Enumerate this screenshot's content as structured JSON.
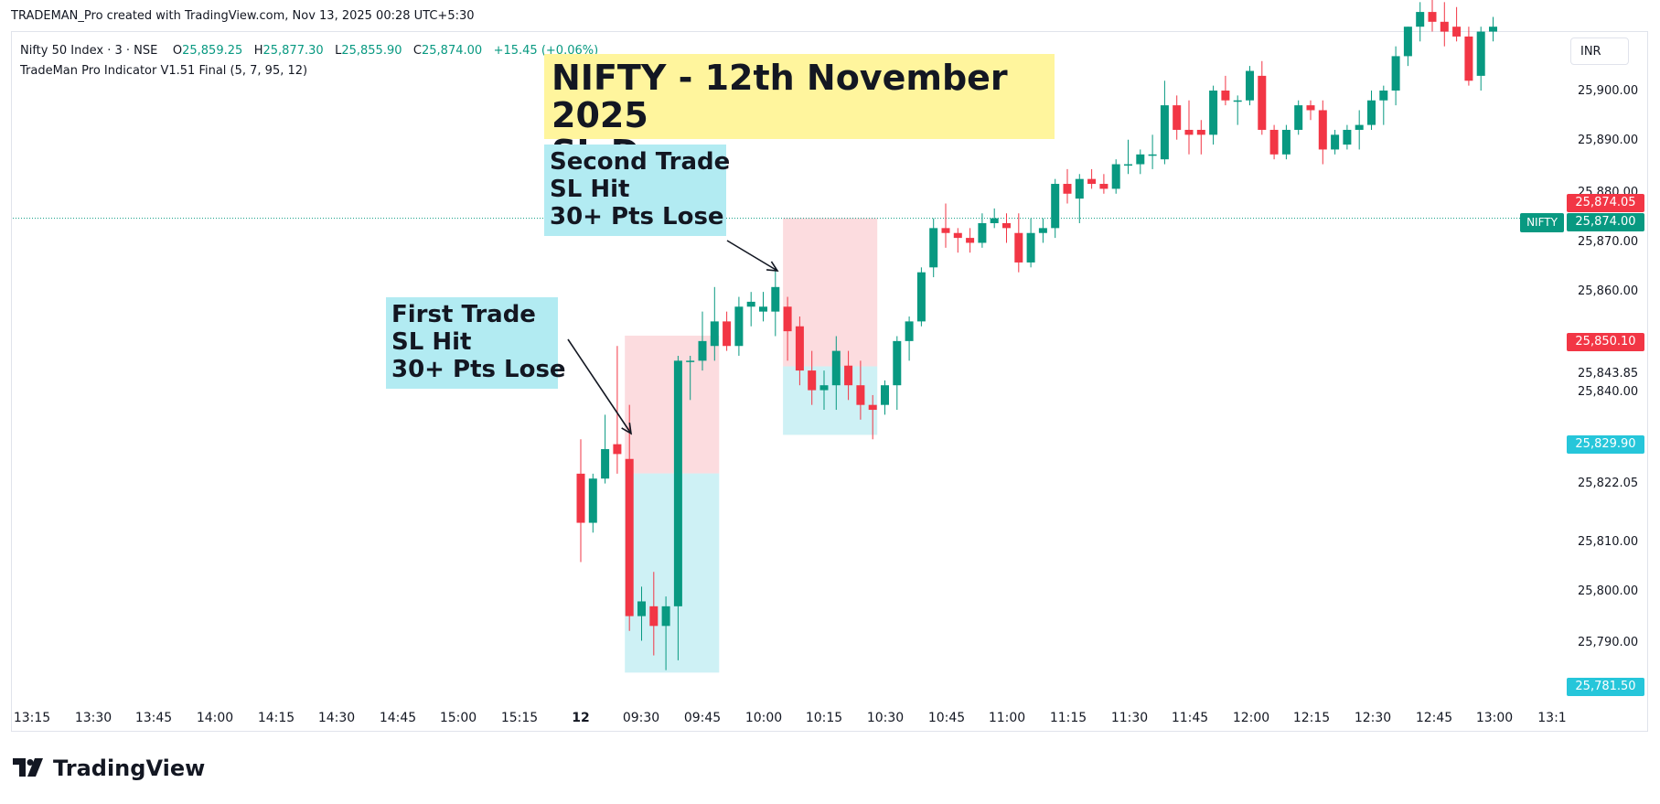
{
  "watermark": "TRADEMAN_Pro created with TradingView.com, Nov 13, 2025 00:28 UTC+5:30",
  "legend": {
    "symbol": "Nifty 50 Index · 3 · NSE",
    "open_label": "O",
    "open": "25,859.25",
    "high_label": "H",
    "high": "25,877.30",
    "low_label": "L",
    "low": "25,855.90",
    "close_label": "C",
    "close": "25,874.00",
    "change": "+15.45 (+0.06%)",
    "indicator": "TradeMan Pro Indicator V1.51 Final (5, 7, 95, 12)"
  },
  "currency_button": "INR",
  "symbol_tag": "NIFTY",
  "price_ticks": [
    "25,900.00",
    "25,890.00",
    "25,880.00",
    "25,870.00",
    "25,860.00",
    "25,843.85",
    "25,840.00",
    "25,822.05",
    "25,810.00",
    "25,800.00",
    "25,790.00"
  ],
  "price_badges": [
    {
      "label": "25,874.05",
      "color": "#f23645"
    },
    {
      "label": "25,874.00",
      "color": "#089981"
    },
    {
      "label": "25,850.10",
      "color": "#f23645"
    },
    {
      "label": "25,829.90",
      "color": "#26c6da"
    },
    {
      "label": "25,781.50",
      "color": "#26c6da"
    }
  ],
  "time_labels": [
    "13:15",
    "13:30",
    "13:45",
    "14:00",
    "14:15",
    "14:30",
    "14:45",
    "15:00",
    "15:15",
    "12",
    "09:30",
    "09:45",
    "10:00",
    "10:15",
    "10:30",
    "10:45",
    "11:00",
    "11:15",
    "11:30",
    "11:45",
    "12:00",
    "12:15",
    "12:30",
    "12:45",
    "13:00",
    "13:1"
  ],
  "title_box": {
    "line1": "NIFTY - 12th November 2025",
    "line2": "SL Day"
  },
  "note_first": {
    "line1": "First Trade",
    "line2": "SL Hit",
    "line3": "30+ Pts Lose"
  },
  "note_second": {
    "line1": "Second Trade",
    "line2": "SL Hit",
    "line3": "30+ Pts Lose"
  },
  "logo_text": "TradingView",
  "colors": {
    "up": "#089981",
    "down": "#f23645",
    "stop_zone": "#fcd6d9",
    "target_zone": "#c6eef3",
    "title_bg": "#fff59d",
    "note_bg": "#b2ebf2"
  },
  "chart_data": {
    "type": "candlestick",
    "symbol": "Nifty 50 Index",
    "interval": "3",
    "ylim": [
      25778,
      25911
    ],
    "last_price": 25874.0,
    "candles": [
      {
        "t": "09:15",
        "o": 25822,
        "h": 25829,
        "l": 25804,
        "c": 25812
      },
      {
        "t": "09:18",
        "o": 25812,
        "h": 25822,
        "l": 25810,
        "c": 25821
      },
      {
        "t": "09:21",
        "o": 25821,
        "h": 25834,
        "l": 25820,
        "c": 25827
      },
      {
        "t": "09:24",
        "o": 25828,
        "h": 25848,
        "l": 25822,
        "c": 25826
      },
      {
        "t": "09:27",
        "o": 25825,
        "h": 25836,
        "l": 25790,
        "c": 25793
      },
      {
        "t": "09:30",
        "o": 25793,
        "h": 25799,
        "l": 25788,
        "c": 25796
      },
      {
        "t": "09:33",
        "o": 25795,
        "h": 25802,
        "l": 25785,
        "c": 25791
      },
      {
        "t": "09:36",
        "o": 25791,
        "h": 25797,
        "l": 25782,
        "c": 25795
      },
      {
        "t": "09:39",
        "o": 25795,
        "h": 25846,
        "l": 25784,
        "c": 25845
      },
      {
        "t": "09:42",
        "o": 25845,
        "h": 25846,
        "l": 25837,
        "c": 25845
      },
      {
        "t": "09:45",
        "o": 25845,
        "h": 25855,
        "l": 25843,
        "c": 25849
      },
      {
        "t": "09:48",
        "o": 25848,
        "h": 25860,
        "l": 25845,
        "c": 25853
      },
      {
        "t": "09:51",
        "o": 25853,
        "h": 25855,
        "l": 25847,
        "c": 25848
      },
      {
        "t": "09:54",
        "o": 25848,
        "h": 25858,
        "l": 25846,
        "c": 25856
      },
      {
        "t": "09:57",
        "o": 25856,
        "h": 25859,
        "l": 25852,
        "c": 25857
      },
      {
        "t": "10:00",
        "o": 25855,
        "h": 25859,
        "l": 25853,
        "c": 25856
      },
      {
        "t": "10:03",
        "o": 25855,
        "h": 25864,
        "l": 25850,
        "c": 25860
      },
      {
        "t": "10:06",
        "o": 25856,
        "h": 25858,
        "l": 25845,
        "c": 25851
      },
      {
        "t": "10:09",
        "o": 25852,
        "h": 25854,
        "l": 25840,
        "c": 25843
      },
      {
        "t": "10:12",
        "o": 25843,
        "h": 25847,
        "l": 25836,
        "c": 25839
      },
      {
        "t": "10:15",
        "o": 25839,
        "h": 25843,
        "l": 25835,
        "c": 25840
      },
      {
        "t": "10:18",
        "o": 25840,
        "h": 25850,
        "l": 25835,
        "c": 25847
      },
      {
        "t": "10:21",
        "o": 25844,
        "h": 25847,
        "l": 25837,
        "c": 25840
      },
      {
        "t": "10:24",
        "o": 25840,
        "h": 25845,
        "l": 25833,
        "c": 25836
      },
      {
        "t": "10:27",
        "o": 25836,
        "h": 25838,
        "l": 25829,
        "c": 25835
      },
      {
        "t": "10:30",
        "o": 25836,
        "h": 25841,
        "l": 25834,
        "c": 25840
      },
      {
        "t": "10:33",
        "o": 25840,
        "h": 25850,
        "l": 25835,
        "c": 25849
      },
      {
        "t": "10:36",
        "o": 25849,
        "h": 25854,
        "l": 25845,
        "c": 25853
      },
      {
        "t": "10:39",
        "o": 25853,
        "h": 25864,
        "l": 25852,
        "c": 25863
      },
      {
        "t": "10:42",
        "o": 25864,
        "h": 25874,
        "l": 25862,
        "c": 25872
      },
      {
        "t": "10:45",
        "o": 25872,
        "h": 25877,
        "l": 25868,
        "c": 25871
      },
      {
        "t": "10:48",
        "o": 25871,
        "h": 25872,
        "l": 25867,
        "c": 25870
      },
      {
        "t": "10:51",
        "o": 25870,
        "h": 25872,
        "l": 25867,
        "c": 25869
      },
      {
        "t": "10:54",
        "o": 25869,
        "h": 25875,
        "l": 25868,
        "c": 25873
      },
      {
        "t": "10:57",
        "o": 25873,
        "h": 25876,
        "l": 25872,
        "c": 25874
      },
      {
        "t": "11:00",
        "o": 25873,
        "h": 25875,
        "l": 25869,
        "c": 25872
      },
      {
        "t": "11:03",
        "o": 25871,
        "h": 25875,
        "l": 25863,
        "c": 25865
      },
      {
        "t": "11:06",
        "o": 25865,
        "h": 25874,
        "l": 25864,
        "c": 25871
      },
      {
        "t": "11:09",
        "o": 25871,
        "h": 25874,
        "l": 25869,
        "c": 25872
      },
      {
        "t": "11:12",
        "o": 25872,
        "h": 25882,
        "l": 25870,
        "c": 25881
      },
      {
        "t": "11:15",
        "o": 25881,
        "h": 25884,
        "l": 25877,
        "c": 25879
      },
      {
        "t": "11:18",
        "o": 25878,
        "h": 25883,
        "l": 25873,
        "c": 25882
      },
      {
        "t": "11:21",
        "o": 25882,
        "h": 25884,
        "l": 25880,
        "c": 25881
      },
      {
        "t": "11:24",
        "o": 25881,
        "h": 25883,
        "l": 25879,
        "c": 25880
      },
      {
        "t": "11:27",
        "o": 25880,
        "h": 25886,
        "l": 25879,
        "c": 25885
      },
      {
        "t": "11:30",
        "o": 25885,
        "h": 25890,
        "l": 25883,
        "c": 25885
      },
      {
        "t": "11:33",
        "o": 25885,
        "h": 25888,
        "l": 25883,
        "c": 25887
      },
      {
        "t": "11:36",
        "o": 25887,
        "h": 25891,
        "l": 25884,
        "c": 25887
      },
      {
        "t": "11:39",
        "o": 25886,
        "h": 25902,
        "l": 25885,
        "c": 25897
      },
      {
        "t": "11:42",
        "o": 25897,
        "h": 25899,
        "l": 25890,
        "c": 25892
      },
      {
        "t": "11:45",
        "o": 25892,
        "h": 25898,
        "l": 25887,
        "c": 25891
      },
      {
        "t": "11:48",
        "o": 25892,
        "h": 25894,
        "l": 25887,
        "c": 25891
      },
      {
        "t": "11:51",
        "o": 25891,
        "h": 25901,
        "l": 25889,
        "c": 25900
      },
      {
        "t": "11:54",
        "o": 25900,
        "h": 25903,
        "l": 25897,
        "c": 25898
      },
      {
        "t": "11:57",
        "o": 25898,
        "h": 25899,
        "l": 25893,
        "c": 25898
      },
      {
        "t": "12:00",
        "o": 25898,
        "h": 25905,
        "l": 25897,
        "c": 25904
      },
      {
        "t": "12:03",
        "o": 25903,
        "h": 25906,
        "l": 25891,
        "c": 25892
      },
      {
        "t": "12:06",
        "o": 25892,
        "h": 25893,
        "l": 25886,
        "c": 25887
      },
      {
        "t": "12:09",
        "o": 25887,
        "h": 25893,
        "l": 25886,
        "c": 25892
      },
      {
        "t": "12:12",
        "o": 25892,
        "h": 25898,
        "l": 25891,
        "c": 25897
      },
      {
        "t": "12:15",
        "o": 25897,
        "h": 25898,
        "l": 25894,
        "c": 25896
      },
      {
        "t": "12:18",
        "o": 25896,
        "h": 25898,
        "l": 25885,
        "c": 25888
      },
      {
        "t": "12:21",
        "o": 25888,
        "h": 25892,
        "l": 25887,
        "c": 25891
      },
      {
        "t": "12:24",
        "o": 25889,
        "h": 25893,
        "l": 25888,
        "c": 25892
      },
      {
        "t": "12:27",
        "o": 25892,
        "h": 25896,
        "l": 25888,
        "c": 25893
      },
      {
        "t": "12:30",
        "o": 25893,
        "h": 25900,
        "l": 25892,
        "c": 25898
      },
      {
        "t": "12:33",
        "o": 25898,
        "h": 25901,
        "l": 25893,
        "c": 25900
      },
      {
        "t": "12:36",
        "o": 25900,
        "h": 25909,
        "l": 25897,
        "c": 25907
      },
      {
        "t": "12:39",
        "o": 25907,
        "h": 25913,
        "l": 25905,
        "c": 25913
      },
      {
        "t": "12:42",
        "o": 25913,
        "h": 25918,
        "l": 25910,
        "c": 25916
      },
      {
        "t": "12:45",
        "o": 25916,
        "h": 25920,
        "l": 25912,
        "c": 25914
      },
      {
        "t": "12:48",
        "o": 25914,
        "h": 25918,
        "l": 25909,
        "c": 25912
      },
      {
        "t": "12:51",
        "o": 25913,
        "h": 25917,
        "l": 25910,
        "c": 25911
      },
      {
        "t": "12:54",
        "o": 25911,
        "h": 25913,
        "l": 25901,
        "c": 25902
      },
      {
        "t": "12:57",
        "o": 25903,
        "h": 25913,
        "l": 25900,
        "c": 25912
      },
      {
        "t": "13:00",
        "o": 25912,
        "h": 25915,
        "l": 25910,
        "c": 25913
      }
    ],
    "positions": [
      {
        "name": "First Trade",
        "entry": 25822.05,
        "stop": 25850.1,
        "target": 25781.5,
        "start": "09:27",
        "end": "09:48"
      },
      {
        "name": "Second Trade",
        "entry": 25843.85,
        "stop": 25874.05,
        "target": 25829.9,
        "start": "10:06",
        "end": "10:27"
      }
    ]
  }
}
